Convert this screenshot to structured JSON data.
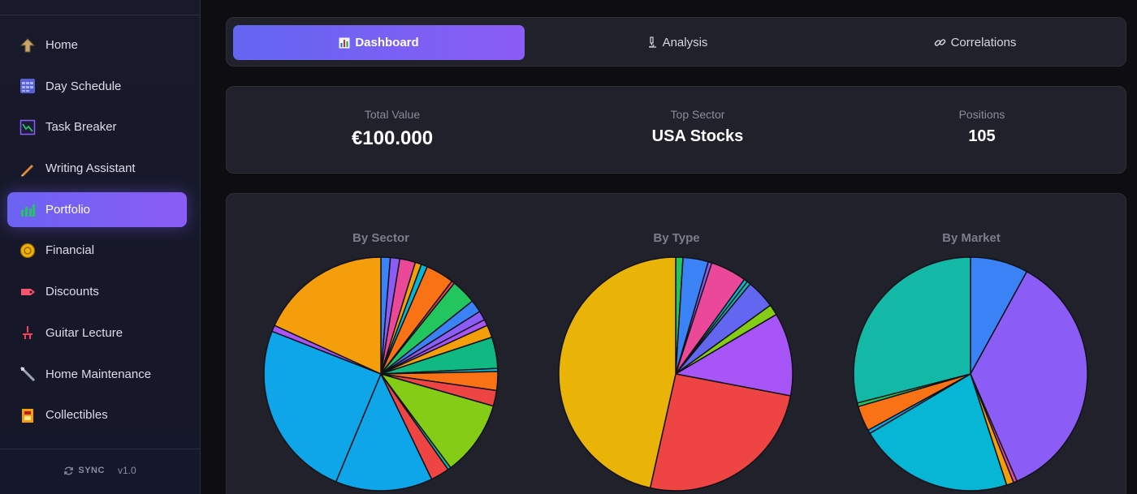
{
  "sidebar": {
    "items": [
      {
        "label": "Home",
        "icon": "home-arrow-icon",
        "active": false
      },
      {
        "label": "Day Schedule",
        "icon": "calendar-grid-icon",
        "active": false
      },
      {
        "label": "Task Breaker",
        "icon": "chart-window-icon",
        "active": false
      },
      {
        "label": "Writing Assistant",
        "icon": "pencil-icon",
        "active": false
      },
      {
        "label": "Portfolio",
        "icon": "bar-chart-icon",
        "active": true
      },
      {
        "label": "Financial",
        "icon": "coin-icon",
        "active": false
      },
      {
        "label": "Discounts",
        "icon": "tag-icon",
        "active": false
      },
      {
        "label": "Guitar Lecture",
        "icon": "music-note-icon",
        "active": false
      },
      {
        "label": "Home Maintenance",
        "icon": "wrench-icon",
        "active": false
      },
      {
        "label": "Collectibles",
        "icon": "box-icon",
        "active": false
      }
    ],
    "footer": {
      "sync_label": "SYNC",
      "version": "v1.0"
    }
  },
  "tabs": [
    {
      "label": "Dashboard",
      "icon": "bar-chart-icon",
      "active": true
    },
    {
      "label": "Analysis",
      "icon": "microscope-icon",
      "active": false
    },
    {
      "label": "Correlations",
      "icon": "link-icon",
      "active": false
    }
  ],
  "stats": {
    "total_value_label": "Total Value",
    "total_value": "€100.000",
    "top_sector_label": "Top Sector",
    "top_sector": "USA Stocks",
    "positions_label": "Positions",
    "positions": "105"
  },
  "colors": {
    "accent": "#8b5cf6",
    "panel": "#20212b",
    "background": "#0e0e12"
  },
  "chart_data": [
    {
      "type": "pie",
      "title": "By Sector",
      "values": [
        1.5,
        1.5,
        2.5,
        1,
        1,
        4.5,
        0.5,
        4,
        2,
        1.5,
        1,
        2,
        5,
        0.5,
        3,
        2.5,
        12,
        0.5,
        3,
        15.5,
        28.5,
        1,
        21
      ],
      "colors": [
        "#3b82f6",
        "#8b5cf6",
        "#ec4899",
        "#f59e0b",
        "#06b6d4",
        "#f97316",
        "#ef4444",
        "#22c55e",
        "#3b82f6",
        "#8b5cf6",
        "#a855f7",
        "#f59e0b",
        "#10b981",
        "#06b6d4",
        "#f97316",
        "#ef4444",
        "#84cc16",
        "#14b8a6",
        "#ef4444",
        "#0ea5e9",
        "#0ea5e9",
        "#a855f7",
        "#f59e0b"
      ]
    },
    {
      "type": "pie",
      "title": "By Type",
      "values": [
        1,
        3.5,
        0.5,
        5,
        0.5,
        0.5,
        4,
        1.5,
        11.5,
        25.5,
        46.5
      ],
      "colors": [
        "#22c55e",
        "#3b82f6",
        "#8b5cf6",
        "#ec4899",
        "#06b6d4",
        "#14b8a6",
        "#6366f1",
        "#84cc16",
        "#a855f7",
        "#ef4444",
        "#eab308"
      ]
    },
    {
      "type": "pie",
      "title": "By Market",
      "values": [
        8,
        35.5,
        0.5,
        1,
        21.5,
        0.5,
        3.5,
        0.5,
        29
      ],
      "colors": [
        "#3b82f6",
        "#8b5cf6",
        "#ec4899",
        "#f59e0b",
        "#06b6d4",
        "#0ea5e9",
        "#f97316",
        "#22c55e",
        "#14b8a6"
      ]
    }
  ]
}
